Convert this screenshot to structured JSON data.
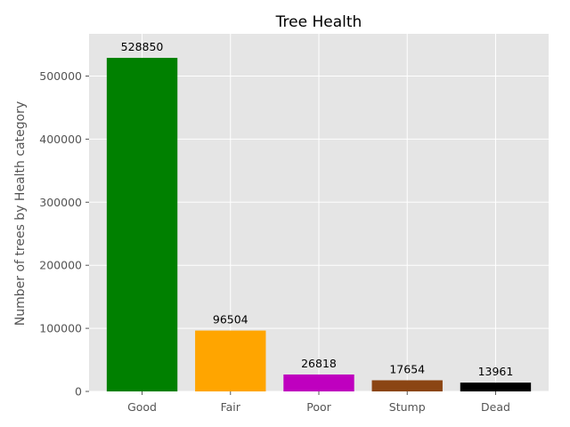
{
  "chart_data": {
    "type": "bar",
    "title": "Tree Health",
    "xlabel": "",
    "ylabel": "Number of trees by Health category",
    "categories": [
      "Good",
      "Fair",
      "Poor",
      "Stump",
      "Dead"
    ],
    "values": [
      528850,
      96504,
      26818,
      17654,
      13961
    ],
    "colors": [
      "#008000",
      "#FFA500",
      "#BF00BF",
      "#8B4513",
      "#000000"
    ],
    "ylim": [
      0,
      567000
    ],
    "yticks": [
      0,
      100000,
      200000,
      300000,
      400000,
      500000
    ],
    "grid": true,
    "style": "ggplot",
    "background": "#E5E5E5"
  }
}
